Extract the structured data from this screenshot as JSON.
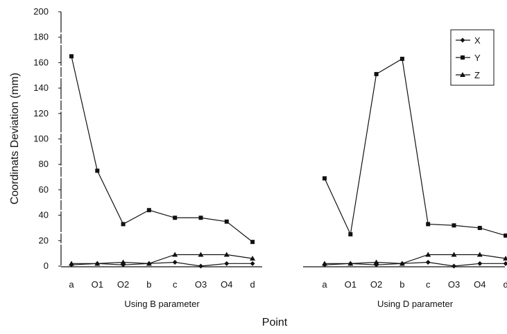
{
  "chart_data": {
    "type": "line",
    "ylabel": "Coordinats Deviation (mm)",
    "xlabel": "Point",
    "ylim": [
      0,
      200
    ],
    "yticks": [
      0,
      20,
      40,
      60,
      80,
      100,
      120,
      140,
      160,
      180,
      200
    ],
    "categories": [
      "a",
      "O1",
      "O2",
      "b",
      "c",
      "O3",
      "O4",
      "d"
    ],
    "legend": [
      "X",
      "Y",
      "Z"
    ],
    "legend_position": "top-right",
    "grid": false,
    "panels": [
      {
        "label": "Using B parameter",
        "series": [
          {
            "name": "X",
            "values": [
              1,
              2,
              1,
              2,
              3,
              0,
              2,
              2
            ]
          },
          {
            "name": "Y",
            "values": [
              165,
              75,
              33,
              44,
              38,
              38,
              35,
              19
            ]
          },
          {
            "name": "Z",
            "values": [
              2,
              2,
              3,
              2,
              9,
              9,
              9,
              6
            ]
          }
        ]
      },
      {
        "label": "Using D parameter",
        "series": [
          {
            "name": "X",
            "values": [
              1,
              2,
              1,
              2,
              3,
              0,
              2,
              2
            ]
          },
          {
            "name": "Y",
            "values": [
              69,
              25,
              151,
              163,
              33,
              32,
              30,
              24
            ]
          },
          {
            "name": "Z",
            "values": [
              2,
              2,
              3,
              2,
              9,
              9,
              9,
              6
            ]
          }
        ]
      }
    ]
  }
}
